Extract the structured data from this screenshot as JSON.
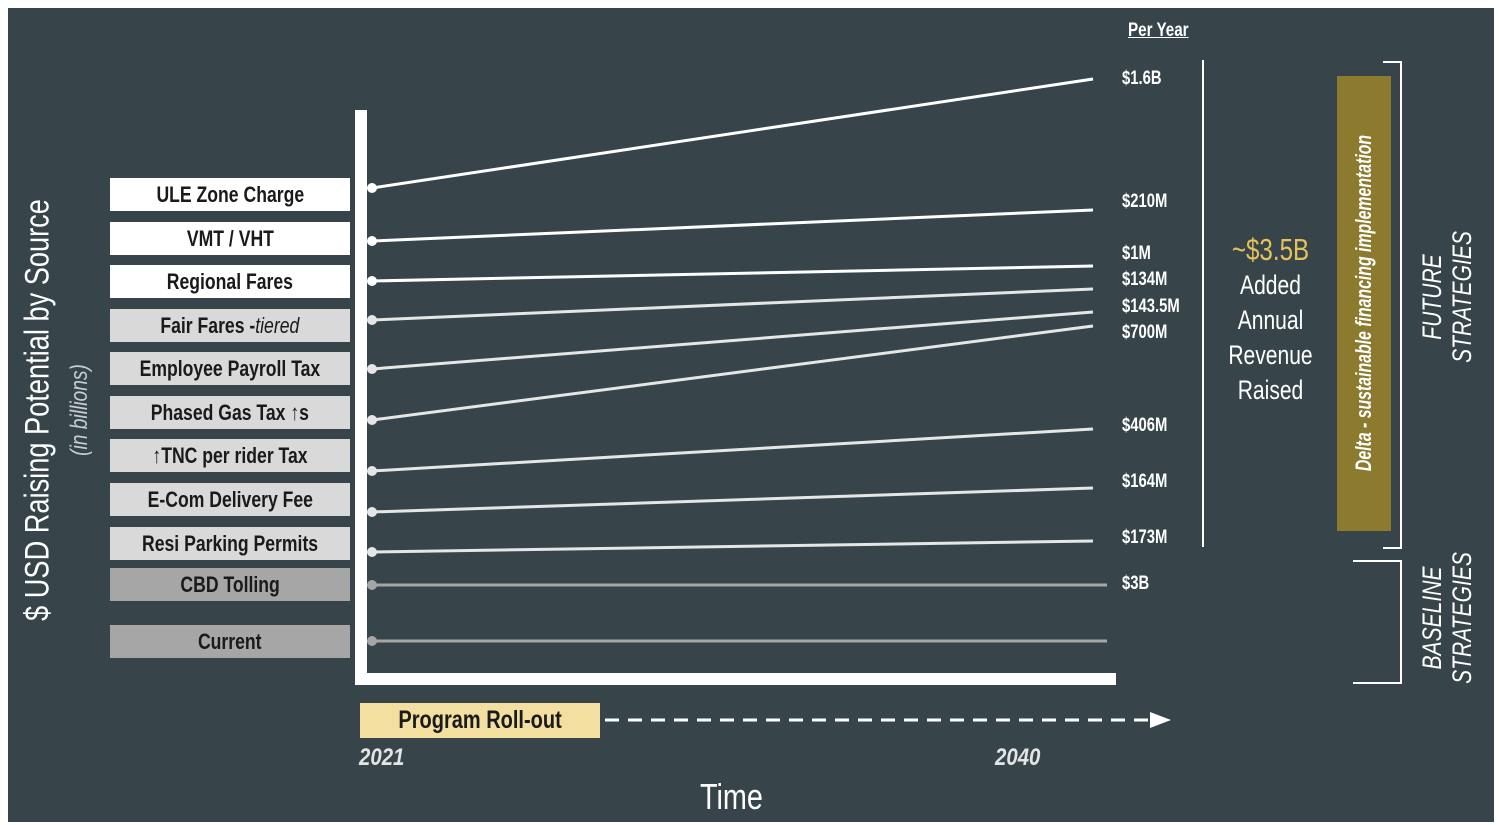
{
  "chart_data": {
    "type": "line",
    "ylabel": "$ USD Raising Potential by Source",
    "ylabel_sub": "(in billions)",
    "xlabel": "Time",
    "x": [
      "2021",
      "2040"
    ],
    "per_year_header": "Per Year",
    "series": [
      {
        "name": "ULE Zone Charge",
        "value_label": "$1.6B",
        "style": "white"
      },
      {
        "name": "VMT / VHT",
        "value_label": "$210M",
        "style": "white"
      },
      {
        "name": "Regional Fares",
        "value_label": "$1M",
        "style": "white"
      },
      {
        "name": "Fair Fares - ",
        "name_suffix": "tiered",
        "value_label": "$134M",
        "style": "light"
      },
      {
        "name": "Employee Payroll Tax",
        "value_label": "$143.5M",
        "style": "light"
      },
      {
        "name": "Phased Gas Tax ↑s",
        "value_label": "$700M",
        "style": "light"
      },
      {
        "name": "↑TNC per rider Tax",
        "value_label": "$406M",
        "style": "light"
      },
      {
        "name": "E-Com Delivery Fee",
        "value_label": "$164M",
        "style": "light"
      },
      {
        "name": "Resi Parking Permits",
        "value_label": "$173M",
        "style": "light"
      },
      {
        "name": "CBD Tolling",
        "value_label": "$3B",
        "style": "gray"
      },
      {
        "name": "Current",
        "value_label": "",
        "style": "gray"
      }
    ],
    "annotations": {
      "total_value": "~$3.5B",
      "total_desc": "Added\nAnnual\nRevenue\nRaised",
      "delta_bar": "Delta - sustainable financing implementation",
      "future_label": "FUTURE\nSTRATEGIES",
      "baseline_label": "BASELINE\nSTRATEGIES",
      "rollout": "Program Roll-out"
    },
    "grid": false
  },
  "colors": {
    "background": "#37454a",
    "white_box": "#ffffff",
    "light_box": "#d9d9d9",
    "gray_box": "#a6a6a6",
    "gold_bar": "#8c7a2f",
    "rollout_box": "#f3df9f",
    "total_text": "#e5c15b"
  }
}
